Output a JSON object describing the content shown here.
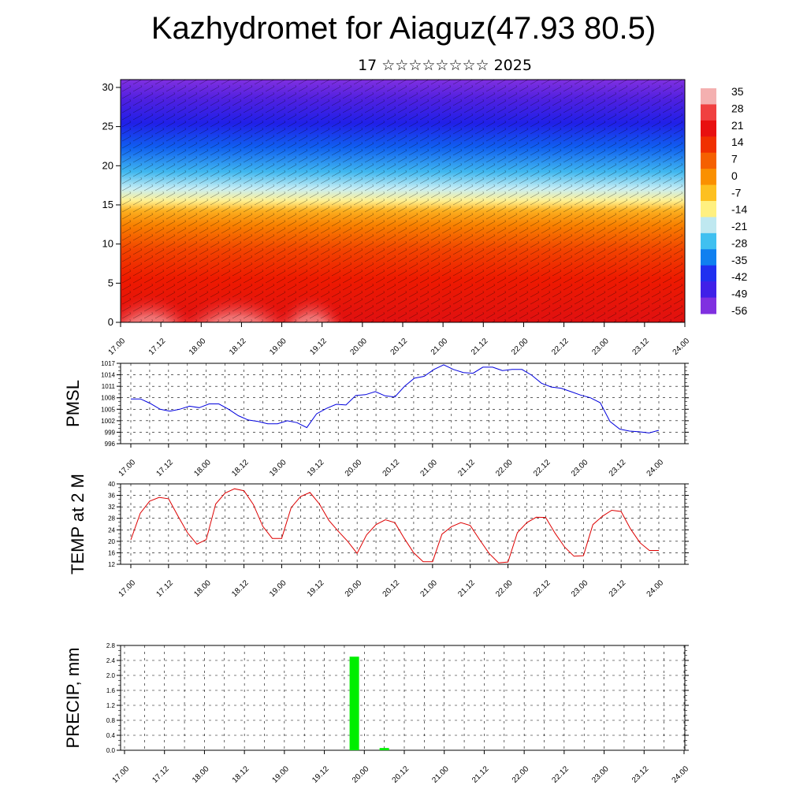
{
  "header": {
    "title": "Kazhydromet for Aiaguz(47.93 80.5)",
    "subtitle": "17 ☆☆☆☆☆☆☆☆ 2025"
  },
  "chart_data": [
    {
      "type": "heatmap",
      "name": "cross-section",
      "x_ticks": [
        "17.00",
        "17.12",
        "18.00",
        "18.12",
        "19.00",
        "19.12",
        "20.00",
        "20.12",
        "21.00",
        "21.12",
        "22.00",
        "22.12",
        "23.00",
        "23.12",
        "24.00"
      ],
      "y_ticks": [
        "0",
        "5",
        "10",
        "15",
        "20",
        "25",
        "30"
      ],
      "ylim": [
        0,
        31
      ],
      "colorbar_labels": [
        "35",
        "28",
        "21",
        "14",
        "7",
        "0",
        "-7",
        "-14",
        "-21",
        "-28",
        "-35",
        "-42",
        "-49",
        "-56"
      ],
      "colorbar_colors": [
        "#f4b0b0",
        "#f04040",
        "#e81010",
        "#f03000",
        "#f56000",
        "#fa9000",
        "#fdc020",
        "#fff080",
        "#bfe8f0",
        "#40c0f0",
        "#1080f0",
        "#2030f0",
        "#4020e8",
        "#8030e0"
      ],
      "wind_barbs": true
    },
    {
      "type": "line",
      "name": "PMSL",
      "ylabel": "PMSL",
      "color": "#0000dd",
      "ylim": [
        996,
        1017
      ],
      "y_ticks": [
        "996",
        "999",
        "1002",
        "1005",
        "1008",
        "1011",
        "1014",
        "1017"
      ],
      "x_ticks": [
        "17.00",
        "17.12",
        "18.00",
        "18.12",
        "19.00",
        "19.12",
        "20.00",
        "20.12",
        "21.00",
        "21.12",
        "22.00",
        "22.12",
        "23.00",
        "23.12",
        "24.00"
      ],
      "values": [
        1007.7,
        1007.7,
        1006.5,
        1005.0,
        1004.5,
        1005.0,
        1005.8,
        1005.4,
        1006.4,
        1006.4,
        1005.0,
        1003.3,
        1002.2,
        1001.8,
        1001.2,
        1001.2,
        1002.0,
        1001.5,
        1000.2,
        1003.8,
        1005.2,
        1006.3,
        1006.1,
        1008.6,
        1008.8,
        1009.6,
        1008.5,
        1008.2,
        1011.0,
        1013.1,
        1013.6,
        1015.4,
        1016.6,
        1015.4,
        1014.6,
        1014.4,
        1016.0,
        1016.0,
        1015.1,
        1015.4,
        1015.4,
        1013.9,
        1011.8,
        1010.8,
        1010.5,
        1009.6,
        1008.7,
        1008.0,
        1006.7,
        1001.8,
        999.8,
        999.3,
        999.1,
        998.8,
        999.5
      ]
    },
    {
      "type": "line",
      "name": "TEMP at 2 M",
      "ylabel": "TEMP at 2 M",
      "color": "#dd0000",
      "ylim": [
        12,
        40
      ],
      "y_ticks": [
        "12",
        "16",
        "20",
        "24",
        "28",
        "32",
        "36",
        "40"
      ],
      "x_ticks": [
        "17.00",
        "17.12",
        "18.00",
        "18.12",
        "19.00",
        "19.12",
        "20.00",
        "20.12",
        "21.00",
        "21.12",
        "22.00",
        "22.12",
        "23.00",
        "23.12",
        "24.00"
      ],
      "values": [
        20.5,
        29.8,
        34.0,
        35.3,
        34.8,
        28.8,
        23.0,
        19.0,
        20.6,
        33.0,
        36.8,
        38.3,
        37.6,
        32.8,
        25.2,
        21.0,
        21.0,
        31.7,
        35.6,
        37.0,
        33.0,
        27.3,
        23.5,
        20.0,
        15.8,
        22.2,
        25.8,
        27.5,
        26.5,
        21.0,
        16.0,
        12.9,
        12.9,
        22.5,
        25.1,
        26.5,
        25.5,
        20.5,
        15.8,
        12.5,
        12.8,
        23.0,
        26.5,
        28.4,
        28.3,
        22.8,
        18.0,
        14.8,
        15.0,
        25.8,
        28.7,
        30.8,
        30.4,
        24.3,
        19.5,
        16.8,
        16.8
      ]
    },
    {
      "type": "bar",
      "name": "PRECIP, mm",
      "ylabel": "PRECIP, mm",
      "color": "#00ee00",
      "ylim": [
        0,
        2.8
      ],
      "y_ticks": [
        "0.0",
        "0.4",
        "0.8",
        "1.2",
        "1.6",
        "2.0",
        "2.4",
        "2.8"
      ],
      "x_ticks": [
        "17.00",
        "17.12",
        "18.00",
        "18.12",
        "19.00",
        "19.12",
        "20.00",
        "20.12",
        "21.00",
        "21.12",
        "22.00",
        "22.12",
        "23.00",
        "23.12",
        "24.00"
      ],
      "bars": [
        {
          "x": "19.21",
          "value": 2.5
        },
        {
          "x": "20.06",
          "value": 0.06
        }
      ]
    }
  ]
}
